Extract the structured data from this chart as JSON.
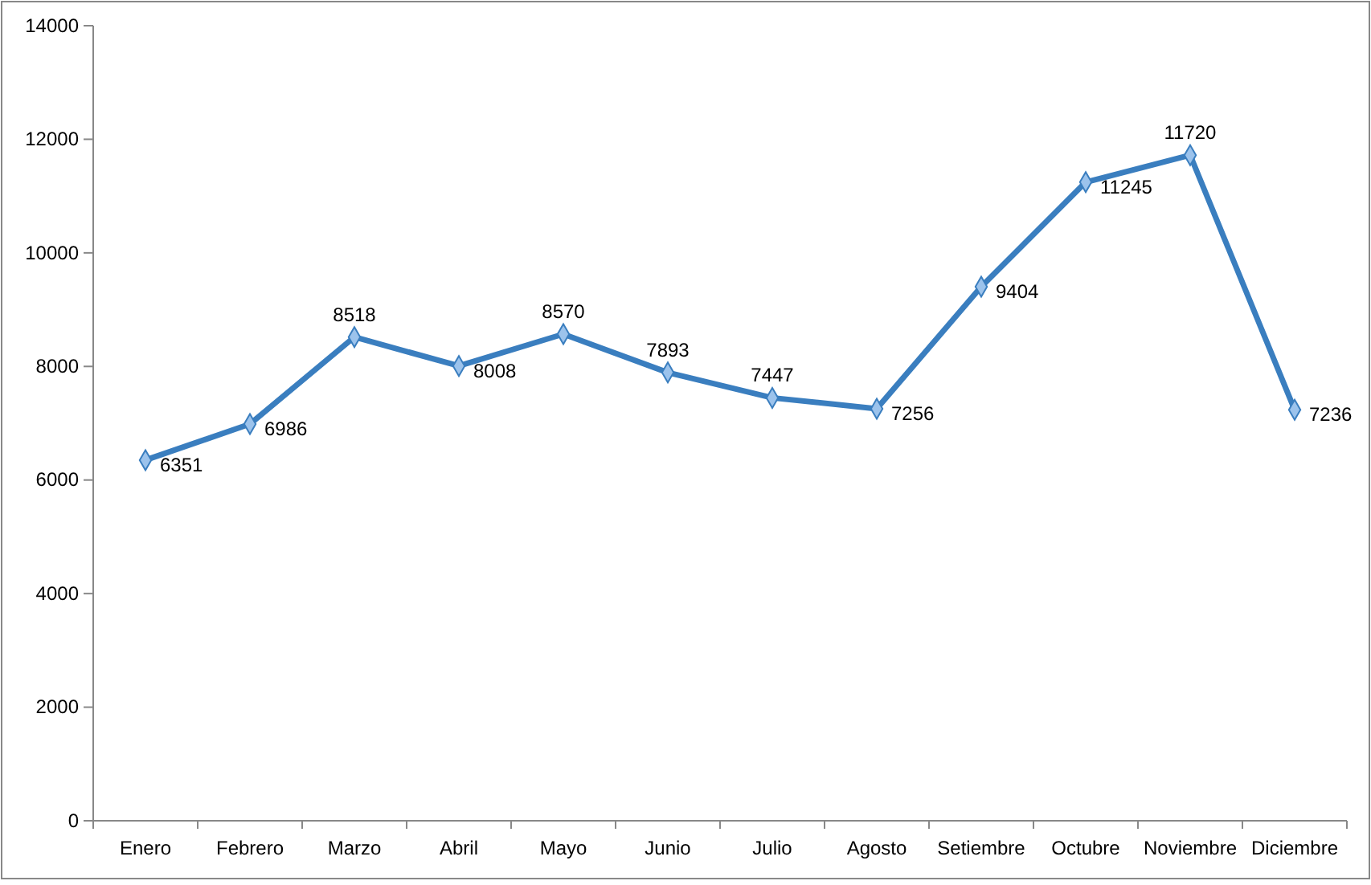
{
  "chart_data": {
    "type": "line",
    "categories": [
      "Enero",
      "Febrero",
      "Marzo",
      "Abril",
      "Mayo",
      "Junio",
      "Julio",
      "Agosto",
      "Setiembre",
      "Octubre",
      "Noviembre",
      "Diciembre"
    ],
    "series": [
      {
        "color": "#3a7ebf",
        "values": [
          6351,
          6986,
          8518,
          8008,
          8570,
          7893,
          7447,
          7256,
          9404,
          11245,
          11720,
          7236
        ]
      }
    ],
    "ylim": [
      0,
      14000
    ],
    "yticks": [
      0,
      2000,
      4000,
      6000,
      8000,
      10000,
      12000,
      14000
    ],
    "grid": false,
    "marker": "diamond",
    "line_style": "solid",
    "data_labels": true
  }
}
